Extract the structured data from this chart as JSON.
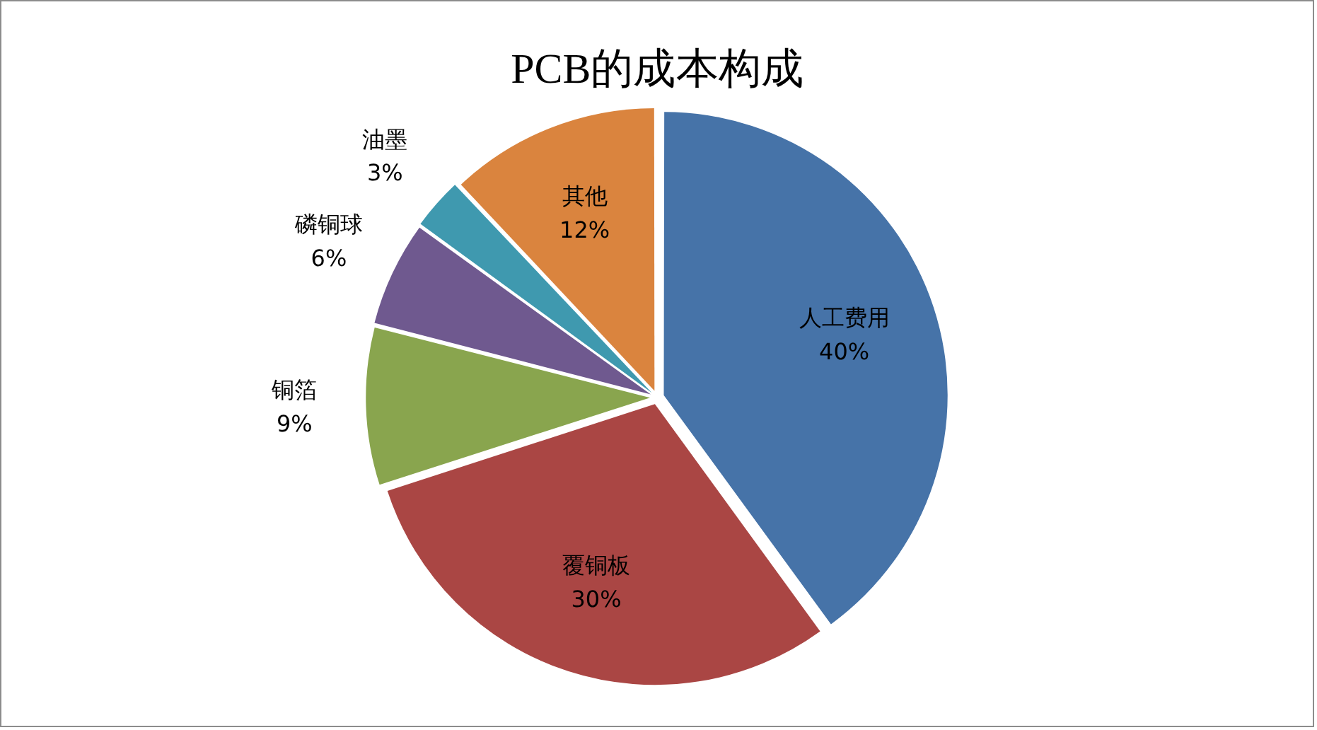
{
  "chart_data": {
    "type": "pie",
    "title": "PCB的成本构成",
    "categories": [
      "人工费用",
      "覆铜板",
      "铜箔",
      "磷铜球",
      "油墨",
      "其他"
    ],
    "values": [
      40,
      30,
      9,
      6,
      3,
      12
    ],
    "value_labels": [
      "40%",
      "30%",
      "9%",
      "6%",
      "3%",
      "12%"
    ],
    "colors": [
      "#4673a8",
      "#aa4644",
      "#89a54e",
      "#6f598f",
      "#3f99af",
      "#da843e"
    ]
  }
}
